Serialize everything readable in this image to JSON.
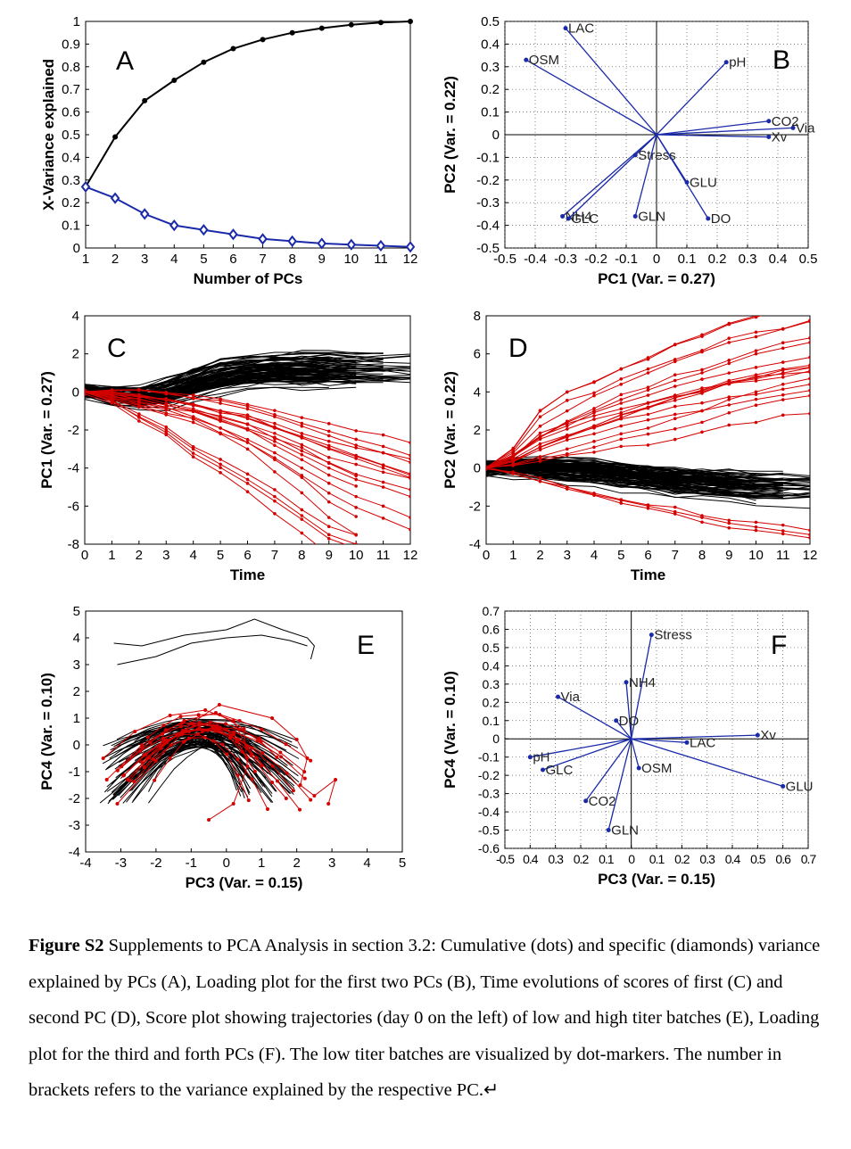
{
  "figure": {
    "caption_title": "Figure S2",
    "caption_text": " Supplements to PCA Analysis in section 3.2: Cumulative (dots) and specific (diamonds) variance explained by PCs (A), Loading plot for the first two PCs (B), Time evolutions of scores of first (C) and second PC (D), Score plot showing trajectories (day 0 on the left) of low and high titer batches (E), Loading plot for the third and forth PCs (F).  The low titer batches are visualized by dot-markers. The number in brackets refers to the variance explained by the respective PC.↵"
  },
  "colors": {
    "high_titer": "#000000",
    "low_titer": "#d40000",
    "loading": "#1a2aa8"
  },
  "chart_data": [
    {
      "panel": "A",
      "type": "line",
      "xlabel": "Number of PCs",
      "ylabel": "X-Variance explained",
      "xlim": [
        1,
        12
      ],
      "ylim": [
        0,
        1
      ],
      "xticks": [
        "1",
        "2",
        "3",
        "4",
        "5",
        "6",
        "7",
        "8",
        "9",
        "10",
        "11",
        "12"
      ],
      "yticks": [
        "0",
        "0.1",
        "0.2",
        "0.3",
        "0.4",
        "0.5",
        "0.6",
        "0.7",
        "0.8",
        "0.9",
        "1"
      ],
      "x": [
        1,
        2,
        3,
        4,
        5,
        6,
        7,
        8,
        9,
        10,
        11,
        12
      ],
      "series": [
        {
          "marker": "dot",
          "color": "#000000",
          "values": [
            0.27,
            0.49,
            0.65,
            0.74,
            0.82,
            0.88,
            0.92,
            0.95,
            0.97,
            0.985,
            0.995,
            1.0
          ]
        },
        {
          "marker": "diamond",
          "color": "#1a2aa8",
          "values": [
            0.27,
            0.22,
            0.15,
            0.1,
            0.08,
            0.06,
            0.04,
            0.03,
            0.02,
            0.015,
            0.01,
            0.005
          ]
        }
      ]
    },
    {
      "panel": "B",
      "type": "scatter",
      "xlabel": "PC1  (Var. = 0.27)",
      "ylabel": "PC2  (Var. = 0.22)",
      "xlim": [
        -0.5,
        0.5
      ],
      "ylim": [
        -0.5,
        0.5
      ],
      "xticks": [
        "-0.5",
        "-0.4",
        "-0.3",
        "-0.2",
        "-0.1",
        "0",
        "0.1",
        "0.2",
        "0.3",
        "0.4",
        "0.5"
      ],
      "yticks": [
        "-0.5",
        "-0.4",
        "-0.3",
        "-0.2",
        "-0.1",
        "0",
        "0.1",
        "0.2",
        "0.3",
        "0.4",
        "0.5"
      ],
      "points": [
        {
          "label": "LAC",
          "x": -0.3,
          "y": 0.47
        },
        {
          "label": "OSM",
          "x": -0.43,
          "y": 0.33
        },
        {
          "label": "pH",
          "x": 0.23,
          "y": 0.32
        },
        {
          "label": "CO2",
          "x": 0.37,
          "y": 0.06
        },
        {
          "label": "Via",
          "x": 0.45,
          "y": 0.03
        },
        {
          "label": "Xv",
          "x": 0.37,
          "y": -0.01
        },
        {
          "label": "Stress",
          "x": -0.07,
          "y": -0.09
        },
        {
          "label": "GLU",
          "x": 0.1,
          "y": -0.21
        },
        {
          "label": "NH4",
          "x": -0.31,
          "y": -0.36
        },
        {
          "label": "GLC",
          "x": -0.29,
          "y": -0.37
        },
        {
          "label": "GLN",
          "x": -0.07,
          "y": -0.36
        },
        {
          "label": "DO",
          "x": 0.17,
          "y": -0.37
        }
      ]
    },
    {
      "panel": "C",
      "type": "line",
      "xlabel": "Time",
      "ylabel": "PC1  (Var. = 0.27)",
      "xlim": [
        0,
        12
      ],
      "ylim": [
        -8,
        4
      ],
      "xticks": [
        "0",
        "1",
        "2",
        "3",
        "4",
        "5",
        "6",
        "7",
        "8",
        "9",
        "10",
        "11",
        "12"
      ],
      "yticks": [
        "-8",
        "-6",
        "-4",
        "-2",
        "0",
        "2",
        "4"
      ],
      "series": [
        {
          "name": "high titer",
          "color": "#000000",
          "band_center": [
            0,
            -0.2,
            -0.3,
            -0.1,
            0.4,
            0.8,
            1.0,
            1.1,
            1.1,
            1.1,
            1.1
          ],
          "band_spread": [
            0.4,
            0.6,
            0.8,
            1.0,
            1.1,
            1.2,
            1.2,
            1.2,
            1.3,
            1.3,
            1.3
          ],
          "max": [
            0.5,
            0.6,
            0.8,
            1.5,
            2.1,
            2.5,
            2.7,
            2.8,
            3.0,
            2.9,
            2.7,
            2.8,
            2.5
          ]
        },
        {
          "name": "low titer",
          "color": "#d40000",
          "sample_trajectories": [
            [
              0,
              -0.5,
              -1.3,
              -2.0,
              -3.0,
              -3.8,
              -4.6,
              -5.5,
              -6.5,
              -7.5,
              -8.0
            ],
            [
              0,
              -0.4,
              -0.8,
              -1.2,
              -1.6,
              -2.2,
              -3.0,
              -4.2,
              -5.3,
              -6.6,
              -7.5
            ],
            [
              0,
              -0.2,
              -0.5,
              -0.8,
              -1.3,
              -1.9,
              -2.5,
              -3.2,
              -4.0,
              -4.8,
              -5.5,
              -6.0,
              -6.6
            ],
            [
              0,
              -0.1,
              -0.4,
              -0.7,
              -1.0,
              -1.5,
              -2.0,
              -2.6,
              -3.3,
              -4.0,
              -4.6,
              -5.0,
              -5.5
            ],
            [
              0,
              0,
              -0.2,
              -0.4,
              -0.7,
              -1.0,
              -1.4,
              -1.9,
              -2.4,
              -3.0,
              -3.5,
              -4.0,
              -4.5
            ],
            [
              0,
              0.1,
              0.1,
              -0.1,
              -0.3,
              -0.6,
              -0.9,
              -1.3,
              -1.8,
              -2.3,
              -2.8,
              -3.2,
              -3.7
            ]
          ]
        }
      ]
    },
    {
      "panel": "D",
      "type": "line",
      "xlabel": "Time",
      "ylabel": "PC2  (Var. = 0.22)",
      "xlim": [
        0,
        12
      ],
      "ylim": [
        -4,
        8
      ],
      "xticks": [
        "0",
        "1",
        "2",
        "3",
        "4",
        "5",
        "6",
        "7",
        "8",
        "9",
        "10",
        "11",
        "12"
      ],
      "yticks": [
        "-4",
        "-2",
        "0",
        "2",
        "4",
        "6",
        "8"
      ],
      "series": [
        {
          "name": "high titer",
          "color": "#000000",
          "band_center": [
            0,
            0.1,
            0,
            -0.1,
            -0.2,
            -0.4,
            -0.5,
            -0.7,
            -0.8,
            -0.9,
            -1.0
          ],
          "band_spread": [
            0.5,
            0.7,
            0.8,
            0.9,
            1.0,
            1.0,
            1.0,
            1.1,
            1.1,
            1.2,
            1.2
          ]
        },
        {
          "name": "low titer",
          "color": "#d40000",
          "sample_trajectories": [
            [
              0,
              1.0,
              3.0,
              4.0,
              4.5,
              5.2,
              5.8,
              6.5,
              7.0,
              7.6,
              8.0,
              8.3,
              8.7
            ],
            [
              0,
              0.8,
              2.2,
              3.0,
              3.8,
              4.4,
              5.0,
              5.6,
              6.1,
              6.6,
              6.9,
              7.3,
              7.7
            ],
            [
              0,
              0.6,
              1.6,
              2.4,
              3.0,
              3.6,
              4.1,
              4.6,
              5.0,
              5.5,
              6.0,
              6.3,
              6.6
            ],
            [
              0,
              0.4,
              1.1,
              1.7,
              2.2,
              2.8,
              3.2,
              3.7,
              4.1,
              4.6,
              4.9,
              5.2,
              5.4
            ],
            [
              0,
              0.2,
              0.6,
              1.0,
              1.4,
              1.8,
              2.1,
              2.6,
              3.0,
              3.6,
              4.0,
              4.4,
              4.7
            ],
            [
              0,
              -0.3,
              -0.7,
              -1.0,
              -1.4,
              -1.7,
              -2.0,
              -2.3,
              -2.6,
              -2.9,
              -3.1,
              -3.3,
              -3.5
            ]
          ]
        }
      ]
    },
    {
      "panel": "E",
      "type": "scatter",
      "xlabel": "PC3  (Var. = 0.15)",
      "ylabel": "PC4  (Var. = 0.10)",
      "xlim": [
        -4,
        5
      ],
      "ylim": [
        -4,
        5
      ],
      "xticks": [
        "-4",
        "-3",
        "-2",
        "-1",
        "0",
        "1",
        "2",
        "3",
        "4",
        "5"
      ],
      "yticks": [
        "-4",
        "-3",
        "-2",
        "-1",
        "0",
        "1",
        "2",
        "3",
        "4",
        "5"
      ],
      "series": [
        {
          "name": "high titer",
          "color": "#000000",
          "sample_trajectories": [
            [
              [
                -3.2,
                3.8
              ],
              [
                -2.4,
                3.7
              ],
              [
                -1.2,
                4.1
              ],
              [
                0,
                4.3
              ],
              [
                0.8,
                4.7
              ],
              [
                1.6,
                4.3
              ],
              [
                2.3,
                4.0
              ],
              [
                2.5,
                3.7
              ],
              [
                2.4,
                3.2
              ]
            ],
            [
              [
                -3.1,
                3.0
              ],
              [
                -2.0,
                3.3
              ],
              [
                -1.0,
                3.8
              ],
              [
                0,
                4.0
              ],
              [
                1.0,
                4.1
              ],
              [
                1.8,
                3.9
              ],
              [
                2.3,
                3.7
              ]
            ],
            [
              [
                -3.5,
                -0.3
              ],
              [
                -2.5,
                0.6
              ],
              [
                -1.5,
                1.2
              ],
              [
                -0.5,
                1.5
              ],
              [
                0.5,
                1.2
              ],
              [
                1.3,
                0.3
              ],
              [
                1.6,
                -0.8
              ]
            ],
            [
              [
                -3.3,
                -1.8
              ],
              [
                -2.2,
                0.1
              ],
              [
                -1.0,
                1.1
              ],
              [
                0,
                1.3
              ],
              [
                0.8,
                0.6
              ],
              [
                1.0,
                -0.6
              ]
            ]
          ]
        },
        {
          "name": "low titer",
          "color": "#d40000",
          "sample_trajectories": [
            [
              [
                -3.1,
                -2.2
              ],
              [
                -2.0,
                -0.6
              ],
              [
                -1.0,
                0.8
              ],
              [
                -0.2,
                1.5
              ],
              [
                1.3,
                1.0
              ],
              [
                2.0,
                0.2
              ],
              [
                2.3,
                -0.5
              ],
              [
                2.1,
                -1.5
              ],
              [
                2.5,
                -1.9
              ],
              [
                3.1,
                -1.3
              ],
              [
                2.9,
                -2.2
              ]
            ],
            [
              [
                -3.4,
                -1.3
              ],
              [
                -2.4,
                0
              ],
              [
                -1.2,
                0.9
              ],
              [
                -0.3,
                1.2
              ],
              [
                0.5,
                0.6
              ],
              [
                0.6,
                -0.8
              ],
              [
                0.2,
                -2.2
              ],
              [
                -0.5,
                -2.8
              ]
            ],
            [
              [
                -3.5,
                -0.5
              ],
              [
                -2.6,
                0.5
              ],
              [
                -1.6,
                1.1
              ],
              [
                -0.6,
                1.3
              ],
              [
                0.2,
                0.9
              ],
              [
                0.7,
                -0.4
              ],
              [
                1.3,
                -1.4
              ],
              [
                1.7,
                -2.0
              ]
            ]
          ]
        }
      ]
    },
    {
      "panel": "F",
      "type": "scatter",
      "xlabel": "PC3  (Var. = 0.15)",
      "ylabel": "PC4  (Var. = 0.10)",
      "xlim": [
        -0.5,
        0.7
      ],
      "ylim": [
        -0.6,
        0.7
      ],
      "xticks": [
        "-0.5",
        "0.4",
        "0.3",
        "0.2",
        "0.1",
        "0",
        "0.1",
        "0.2",
        "0.3",
        "0.4",
        "0.5",
        "0.6",
        "0.7"
      ],
      "yticks": [
        "-0.6",
        "-0.5",
        "-0.4",
        "-0.3",
        "-0.2",
        "-0.1",
        "0",
        "0.1",
        "0.2",
        "0.3",
        "0.4",
        "0.5",
        "0.6",
        "0.7"
      ],
      "points": [
        {
          "label": "Stress",
          "x": 0.08,
          "y": 0.57
        },
        {
          "label": "NH4",
          "x": -0.02,
          "y": 0.31
        },
        {
          "label": "Via",
          "x": -0.29,
          "y": 0.23
        },
        {
          "label": "DO",
          "x": -0.06,
          "y": 0.1
        },
        {
          "label": "Xv",
          "x": 0.5,
          "y": 0.02
        },
        {
          "label": "LAC",
          "x": 0.22,
          "y": -0.02
        },
        {
          "label": "pH",
          "x": -0.4,
          "y": -0.1
        },
        {
          "label": "GLC",
          "x": -0.35,
          "y": -0.17
        },
        {
          "label": "OSM",
          "x": 0.03,
          "y": -0.16
        },
        {
          "label": "GLU",
          "x": 0.6,
          "y": -0.26
        },
        {
          "label": "CO2",
          "x": -0.18,
          "y": -0.34
        },
        {
          "label": "GLN",
          "x": -0.09,
          "y": -0.5
        }
      ]
    }
  ]
}
